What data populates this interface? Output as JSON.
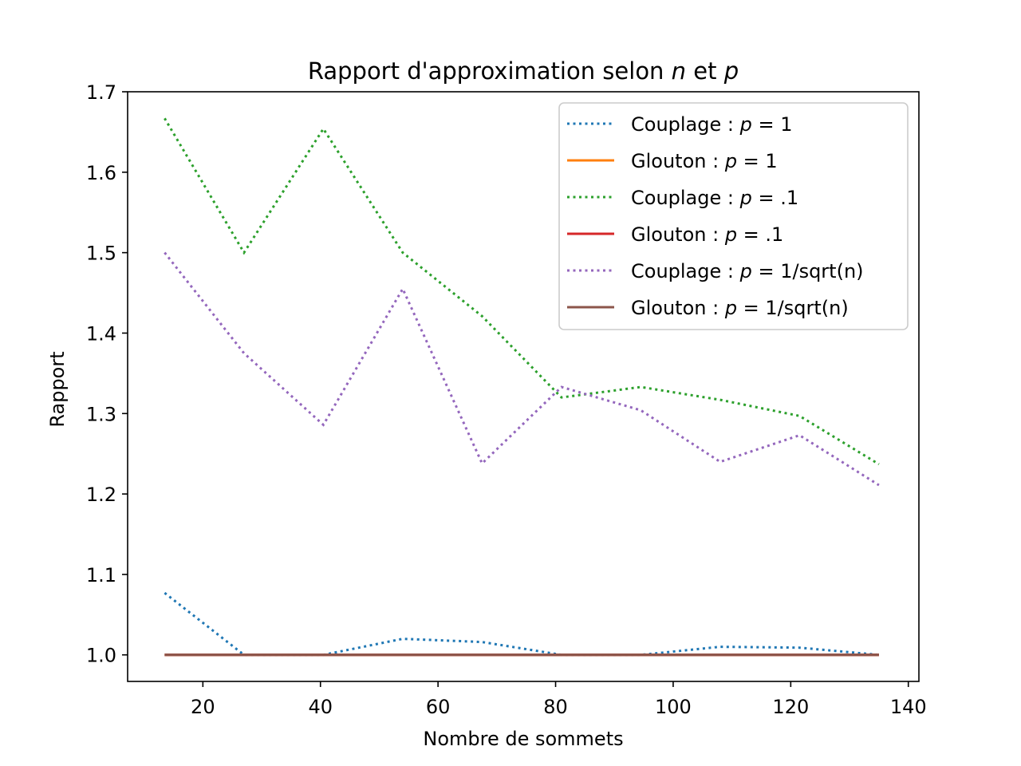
{
  "chart_data": {
    "type": "line",
    "title": {
      "prefix": "Rapport d'approximation selon ",
      "var1": "n",
      "middle": " et ",
      "var2": "p"
    },
    "xlabel": "Nombre de sommets",
    "ylabel": "Rapport",
    "xlim": [
      7.2,
      141.8
    ],
    "ylim": [
      0.967,
      1.7
    ],
    "xticks": [
      20,
      40,
      60,
      80,
      100,
      120,
      140
    ],
    "yticks": [
      1.0,
      1.1,
      1.2,
      1.3,
      1.4,
      1.5,
      1.6,
      1.7
    ],
    "ytick_labels": [
      "1.0",
      "1.1",
      "1.2",
      "1.3",
      "1.4",
      "1.5",
      "1.6",
      "1.7"
    ],
    "grid": false,
    "legend_position": "top-right",
    "x": [
      13.5,
      27,
      40.5,
      54,
      67.5,
      81,
      94.5,
      108,
      121.5,
      135
    ],
    "series": [
      {
        "prefix": "Couplage : ",
        "var": "p",
        "suffix": " = 1",
        "color": "#1f77b4",
        "style": "dotted",
        "values": [
          1.077,
          1.0,
          1.0,
          1.02,
          1.016,
          1.0,
          1.0,
          1.01,
          1.009,
          1.0
        ]
      },
      {
        "prefix": "Glouton : ",
        "var": "p",
        "suffix": " = 1",
        "color": "#ff7f0e",
        "style": "solid",
        "values": [
          1.0,
          1.0,
          1.0,
          1.0,
          1.0,
          1.0,
          1.0,
          1.0,
          1.0,
          1.0
        ]
      },
      {
        "prefix": "Couplage : ",
        "var": "p",
        "suffix": " = .1",
        "color": "#2ca02c",
        "style": "dotted",
        "values": [
          1.667,
          1.5,
          1.654,
          1.5,
          1.421,
          1.32,
          1.333,
          1.317,
          1.297,
          1.237
        ]
      },
      {
        "prefix": "Glouton : ",
        "var": "p",
        "suffix": " = .1",
        "color": "#d62728",
        "style": "solid",
        "values": [
          1.0,
          1.0,
          1.0,
          1.0,
          1.0,
          1.0,
          1.0,
          1.0,
          1.0,
          1.0
        ]
      },
      {
        "prefix": "Couplage : ",
        "var": "p",
        "suffix": " = 1/sqrt(n)",
        "color": "#9467bd",
        "style": "dotted",
        "values": [
          1.5,
          1.375,
          1.286,
          1.455,
          1.238,
          1.333,
          1.304,
          1.24,
          1.273,
          1.211
        ]
      },
      {
        "prefix": "Glouton : ",
        "var": "p",
        "suffix": " = 1/sqrt(n)",
        "color": "#8c564b",
        "style": "solid",
        "values": [
          1.0,
          1.0,
          1.0,
          1.0,
          1.0,
          1.0,
          1.0,
          1.0,
          1.0,
          1.0
        ]
      }
    ]
  }
}
